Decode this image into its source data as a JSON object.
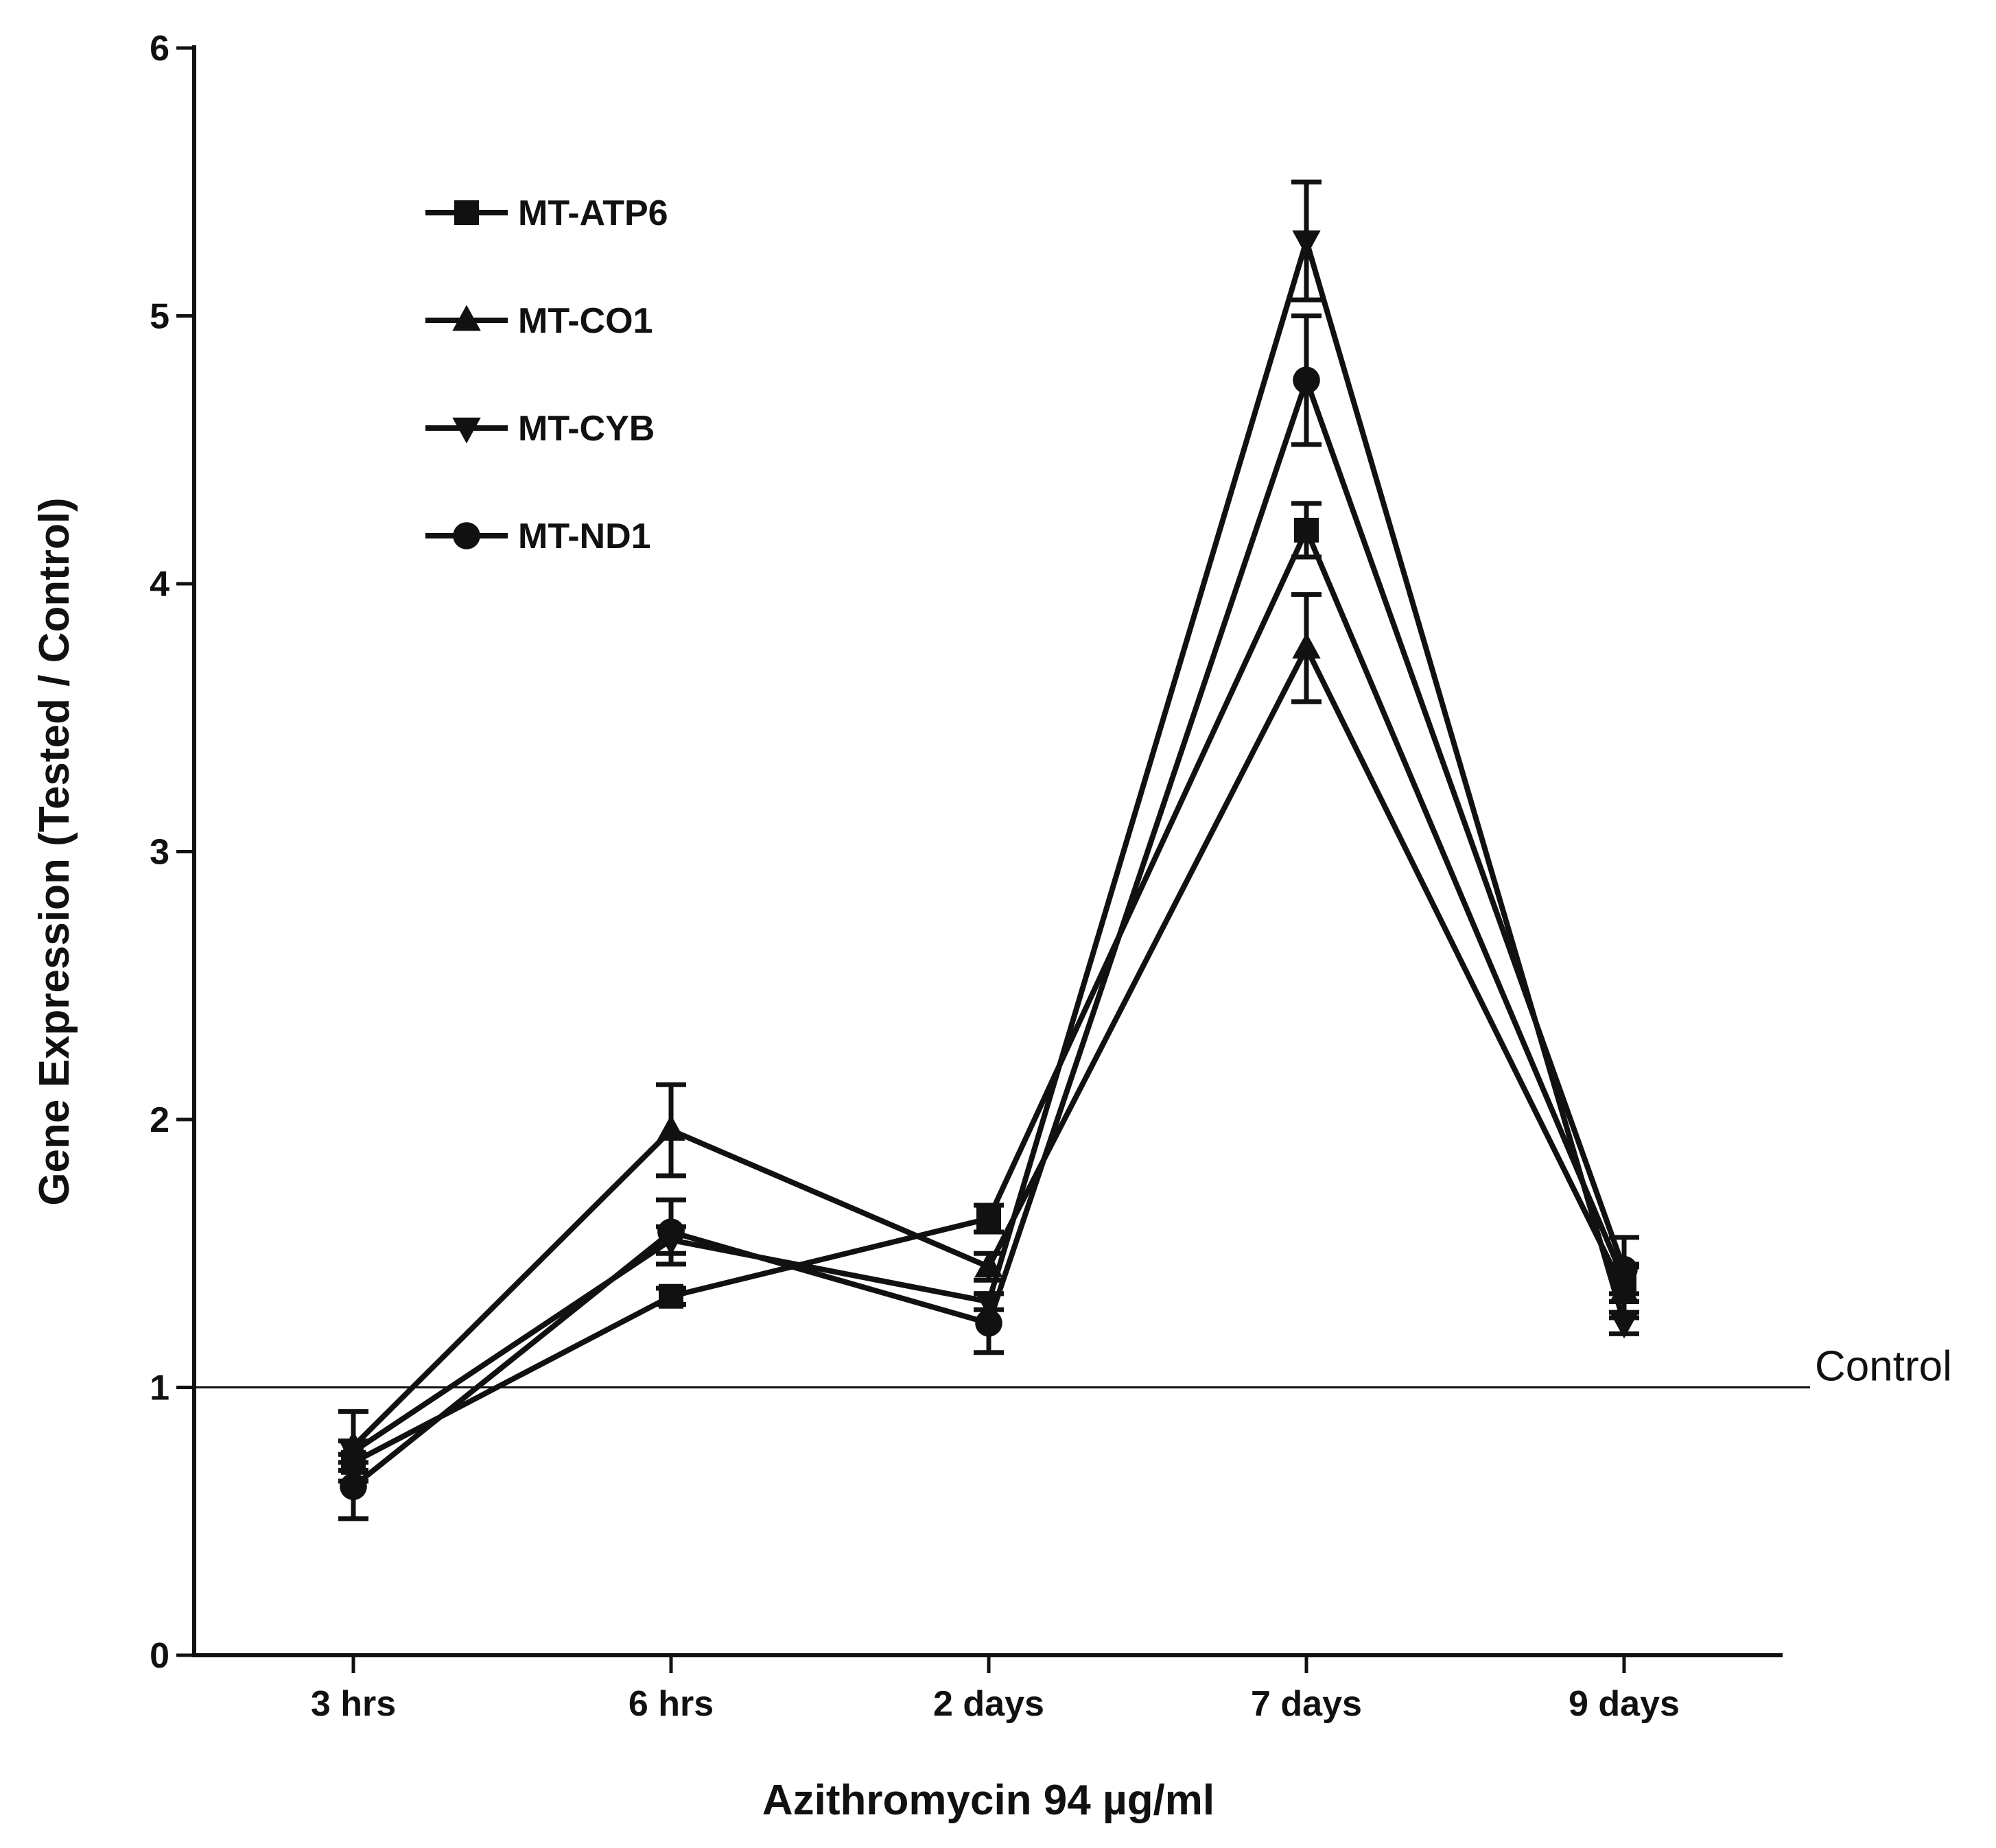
{
  "chart_data": {
    "type": "line",
    "title": "",
    "xlabel": "Azithromycin 94 µg/ml",
    "ylabel": "Gene Expression (Tested / Control)",
    "categories": [
      "3 hrs",
      "6 hrs",
      "2 days",
      "7 days",
      "9 days"
    ],
    "ylim": [
      0,
      6
    ],
    "yticks": [
      "0",
      "1",
      "2",
      "3",
      "4",
      "5",
      "6"
    ],
    "grid": false,
    "legend_position": "top-left",
    "reference_line": {
      "value": 1,
      "label": "Control"
    },
    "series": [
      {
        "name": "MT-ATP6",
        "marker": "square",
        "values": [
          0.72,
          1.34,
          1.63,
          4.2,
          1.4
        ],
        "errors": [
          0.03,
          0.03,
          0.05,
          0.1,
          0.05
        ]
      },
      {
        "name": "MT-CO1",
        "marker": "triangle-up",
        "values": [
          0.78,
          1.96,
          1.45,
          3.76,
          1.36
        ],
        "errors": [
          0.13,
          0.17,
          0.05,
          0.2,
          0.1
        ]
      },
      {
        "name": "MT-CYB",
        "marker": "triangle-down",
        "values": [
          0.76,
          1.55,
          1.32,
          5.28,
          1.24
        ],
        "errors": [
          0.04,
          0.05,
          0.03,
          0.22,
          0.04
        ]
      },
      {
        "name": "MT-ND1",
        "marker": "circle",
        "values": [
          0.63,
          1.58,
          1.24,
          4.76,
          1.44
        ],
        "errors": [
          0.12,
          0.12,
          0.11,
          0.24,
          0.12
        ]
      }
    ]
  }
}
